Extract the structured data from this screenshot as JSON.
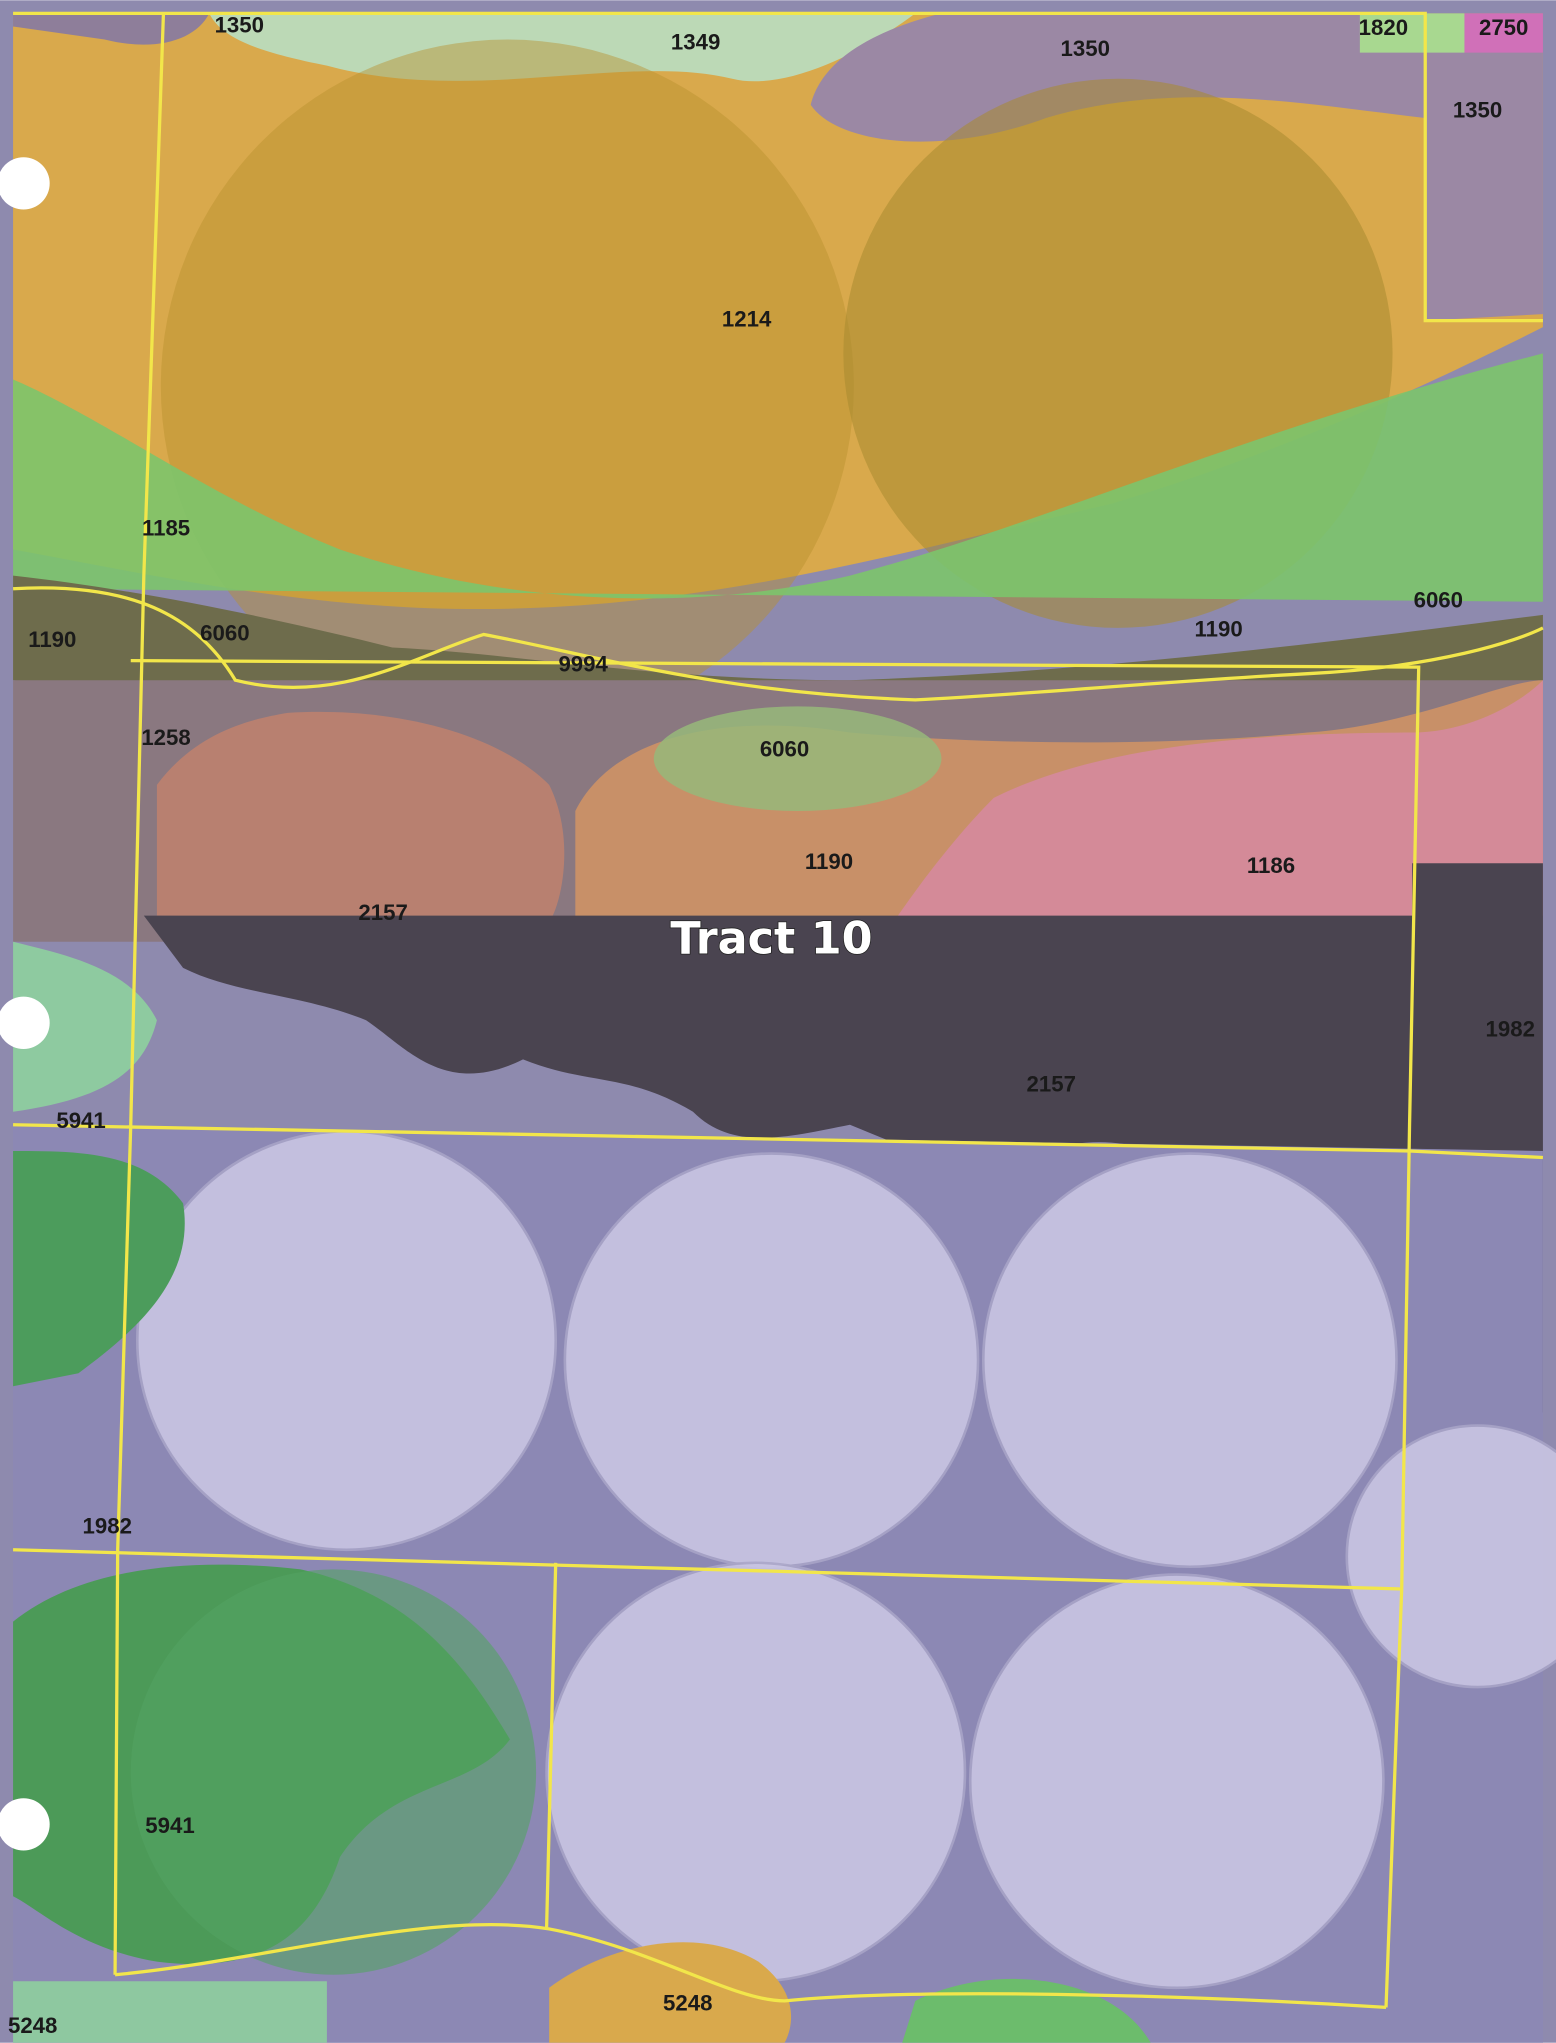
{
  "map": {
    "tract_label": "Tract 10",
    "labels": [
      "1350",
      "1349",
      "1350",
      "1820",
      "2750",
      "1350",
      "1214",
      "1185",
      "1190",
      "6060",
      "9994",
      "1190",
      "6060",
      "1258",
      "6060",
      "1190",
      "1186",
      "2157",
      "1982",
      "2157",
      "5941",
      "1982",
      "5941",
      "5248",
      "5248"
    ]
  }
}
